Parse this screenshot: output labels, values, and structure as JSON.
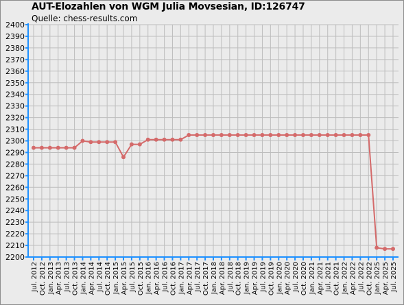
{
  "title": "AUT-Elozahlen von WGM Julia Movsesian, ID:126747",
  "subtitle": "Quelle: chess-results.com",
  "colors": {
    "line": "#d46a6a",
    "axis": "#1e90ff",
    "grid": "#bdbdbd",
    "background": "#ebebeb"
  },
  "chart_data": {
    "type": "line",
    "title": "AUT-Elozahlen von WGM Julia Movsesian, ID:126747",
    "subtitle": "Quelle: chess-results.com",
    "xlabel": "",
    "ylabel": "",
    "ylim": [
      2200,
      2400
    ],
    "yticks": [
      2200,
      2210,
      2220,
      2230,
      2240,
      2250,
      2260,
      2270,
      2280,
      2290,
      2300,
      2310,
      2320,
      2330,
      2340,
      2350,
      2360,
      2370,
      2380,
      2390,
      2400
    ],
    "grid": true,
    "categories": [
      "Jul. 2012",
      "Oct. 2012",
      "Jan. 2013",
      "Apr. 2013",
      "Jul. 2013",
      "Oct. 2013",
      "Jan. 2014",
      "Apr. 2014",
      "Jul. 2014",
      "Oct. 2014",
      "Jan. 2015",
      "Apr. 2015",
      "Jul. 2015",
      "Oct. 2015",
      "Jan. 2016",
      "Apr. 2016",
      "Jul. 2016",
      "Oct. 2016",
      "Jan. 2017",
      "Apr. 2017",
      "Jul. 2017",
      "Oct. 2017",
      "Jan. 2018",
      "Apr. 2018",
      "Jul. 2018",
      "Oct. 2018",
      "Jan. 2019",
      "Apr. 2019",
      "Jul. 2019",
      "Oct. 2019",
      "Jan. 2020",
      "Apr. 2020",
      "Jul. 2020",
      "Oct. 2020",
      "Jan. 2021",
      "Apr. 2021",
      "Jul. 2021",
      "Oct. 2021",
      "Jan. 2022",
      "Apr. 2022",
      "Jul. 2022",
      "Oct. 2022",
      "Jan. 2025",
      "Apr. 2025",
      "Jul. 2025"
    ],
    "series": [
      {
        "values": [
          2294,
          2294,
          2294,
          2294,
          2294,
          2294,
          2300,
          2299,
          2299,
          2299,
          2299,
          2286,
          2297,
          2297,
          2301,
          2301,
          2301,
          2301,
          2301,
          2305,
          2305,
          2305,
          2305,
          2305,
          2305,
          2305,
          2305,
          2305,
          2305,
          2305,
          2305,
          2305,
          2305,
          2305,
          2305,
          2305,
          2305,
          2305,
          2305,
          2305,
          2305,
          2305,
          2208,
          2207,
          2207
        ]
      }
    ]
  }
}
